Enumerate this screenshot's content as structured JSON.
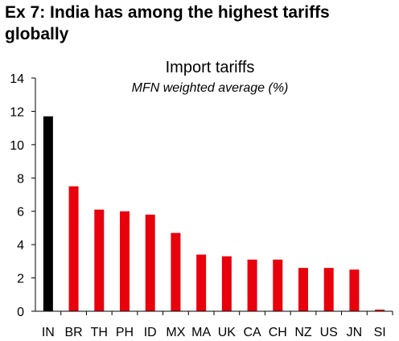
{
  "figure_title": "Ex 7: India has among the highest tariffs globally",
  "chart_data": {
    "type": "bar",
    "title": "Import tariffs",
    "subtitle": "MFN weighted average (%)",
    "xlabel": "",
    "ylabel": "",
    "ylim": [
      0,
      14
    ],
    "yticks": [
      0,
      2,
      4,
      6,
      8,
      10,
      12,
      14
    ],
    "grid": false,
    "categories": [
      "IN",
      "BR",
      "TH",
      "PH",
      "ID",
      "MX",
      "MA",
      "UK",
      "CA",
      "CH",
      "NZ",
      "US",
      "JN",
      "SI"
    ],
    "values": [
      11.7,
      7.5,
      6.1,
      6.0,
      5.8,
      4.7,
      3.4,
      3.3,
      3.1,
      3.1,
      2.6,
      2.6,
      2.5,
      0.1
    ],
    "colors": [
      "#000000",
      "#e8000d",
      "#e8000d",
      "#e8000d",
      "#e8000d",
      "#e8000d",
      "#e8000d",
      "#e8000d",
      "#e8000d",
      "#e8000d",
      "#e8000d",
      "#e8000d",
      "#e8000d",
      "#e8000d"
    ]
  }
}
